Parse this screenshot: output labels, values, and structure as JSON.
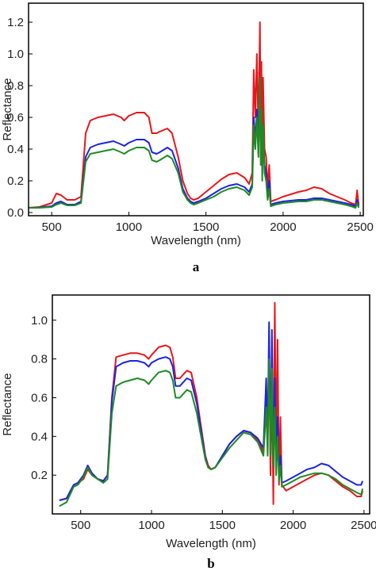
{
  "chart_data": [
    {
      "type": "line",
      "panel_label": "a",
      "xlabel": "Wavelength (nm)",
      "ylabel": "Reflectance",
      "xlim": [
        350,
        2520
      ],
      "ylim": [
        -0.02,
        1.32
      ],
      "xticks": [
        500,
        1000,
        1500,
        2000,
        2500
      ],
      "yticks": [
        0.0,
        0.2,
        0.4,
        0.6,
        0.8,
        1.0,
        1.2
      ],
      "ytick_labels": [
        "0.0",
        "0.2",
        "0.4",
        "0.6",
        "0.8",
        "1.0",
        "1.2"
      ],
      "colors": [
        "#e8171b",
        "#1c25e0",
        "#1f8a23"
      ],
      "series": [
        {
          "x": [
            350,
            420,
            500,
            530,
            560,
            600,
            650,
            690,
            720,
            750,
            800,
            850,
            900,
            950,
            970,
            1000,
            1050,
            1100,
            1130,
            1150,
            1180,
            1200,
            1250,
            1280,
            1320,
            1350,
            1380,
            1400,
            1420,
            1450,
            1500,
            1550,
            1600,
            1650,
            1700,
            1750,
            1780,
            1800,
            1810,
            1820,
            1830,
            1840,
            1850,
            1855,
            1860,
            1865,
            1870,
            1880,
            1890,
            1900,
            1910,
            1920,
            1950,
            2000,
            2100,
            2150,
            2200,
            2250,
            2300,
            2350,
            2400,
            2440,
            2470,
            2480,
            2490
          ],
          "values": [
            0.03,
            0.035,
            0.06,
            0.12,
            0.11,
            0.08,
            0.08,
            0.1,
            0.5,
            0.58,
            0.6,
            0.61,
            0.62,
            0.6,
            0.58,
            0.61,
            0.63,
            0.63,
            0.6,
            0.5,
            0.5,
            0.51,
            0.53,
            0.5,
            0.35,
            0.2,
            0.12,
            0.09,
            0.08,
            0.09,
            0.13,
            0.17,
            0.21,
            0.24,
            0.25,
            0.22,
            0.18,
            0.25,
            0.9,
            0.6,
            1.0,
            0.5,
            1.2,
            0.4,
            0.95,
            0.3,
            0.85,
            0.4,
            0.35,
            0.15,
            0.3,
            0.07,
            0.08,
            0.1,
            0.13,
            0.14,
            0.16,
            0.15,
            0.12,
            0.1,
            0.08,
            0.06,
            0.05,
            0.14,
            0.05
          ]
        },
        {
          "x": [
            350,
            420,
            500,
            530,
            560,
            600,
            650,
            690,
            720,
            750,
            800,
            850,
            900,
            950,
            970,
            1000,
            1050,
            1100,
            1130,
            1150,
            1180,
            1200,
            1250,
            1280,
            1320,
            1350,
            1380,
            1400,
            1420,
            1450,
            1500,
            1550,
            1600,
            1650,
            1700,
            1750,
            1780,
            1800,
            1810,
            1820,
            1830,
            1840,
            1850,
            1855,
            1860,
            1865,
            1870,
            1880,
            1890,
            1900,
            1910,
            1920,
            1950,
            2000,
            2100,
            2150,
            2200,
            2250,
            2300,
            2350,
            2400,
            2440,
            2470,
            2480,
            2490
          ],
          "values": [
            0.03,
            0.032,
            0.04,
            0.06,
            0.07,
            0.05,
            0.05,
            0.07,
            0.35,
            0.41,
            0.43,
            0.44,
            0.45,
            0.43,
            0.42,
            0.44,
            0.46,
            0.46,
            0.44,
            0.38,
            0.37,
            0.38,
            0.41,
            0.39,
            0.28,
            0.15,
            0.09,
            0.07,
            0.06,
            0.07,
            0.09,
            0.12,
            0.15,
            0.17,
            0.18,
            0.16,
            0.13,
            0.18,
            0.6,
            0.45,
            0.65,
            0.4,
            0.8,
            0.35,
            0.6,
            0.25,
            0.5,
            0.3,
            0.25,
            0.1,
            0.2,
            0.05,
            0.06,
            0.07,
            0.08,
            0.08,
            0.09,
            0.09,
            0.08,
            0.07,
            0.06,
            0.05,
            0.04,
            0.08,
            0.04
          ]
        },
        {
          "x": [
            350,
            420,
            500,
            530,
            560,
            600,
            650,
            690,
            720,
            750,
            800,
            850,
            900,
            950,
            970,
            1000,
            1050,
            1100,
            1130,
            1150,
            1180,
            1200,
            1250,
            1280,
            1320,
            1350,
            1380,
            1400,
            1420,
            1450,
            1500,
            1550,
            1600,
            1650,
            1700,
            1750,
            1780,
            1800,
            1810,
            1820,
            1830,
            1840,
            1850,
            1855,
            1860,
            1865,
            1870,
            1880,
            1890,
            1900,
            1910,
            1920,
            1950,
            2000,
            2100,
            2150,
            2200,
            2250,
            2300,
            2350,
            2400,
            2440,
            2470,
            2480,
            2490
          ],
          "values": [
            0.03,
            0.03,
            0.035,
            0.05,
            0.06,
            0.045,
            0.045,
            0.06,
            0.32,
            0.37,
            0.38,
            0.39,
            0.4,
            0.38,
            0.37,
            0.39,
            0.41,
            0.41,
            0.39,
            0.33,
            0.32,
            0.33,
            0.36,
            0.34,
            0.25,
            0.13,
            0.08,
            0.06,
            0.05,
            0.06,
            0.08,
            0.1,
            0.13,
            0.15,
            0.16,
            0.14,
            0.11,
            0.16,
            0.55,
            0.4,
            0.6,
            0.35,
            0.85,
            0.3,
            0.65,
            0.2,
            0.55,
            0.25,
            0.2,
            0.08,
            0.15,
            0.04,
            0.05,
            0.06,
            0.07,
            0.07,
            0.08,
            0.08,
            0.07,
            0.06,
            0.05,
            0.04,
            0.03,
            0.06,
            0.03
          ]
        }
      ]
    },
    {
      "type": "line",
      "panel_label": "b",
      "xlabel": "Wavelength (nm)",
      "ylabel": "Reflectance",
      "xlim": [
        300,
        2540
      ],
      "ylim": [
        0.0,
        1.13
      ],
      "xticks": [
        500,
        1000,
        1500,
        2000,
        2500
      ],
      "yticks": [
        0.2,
        0.4,
        0.6,
        0.8,
        1.0
      ],
      "ytick_labels": [
        "0.2",
        "0.4",
        "0.6",
        "0.8",
        "1.0"
      ],
      "colors": [
        "#e8171b",
        "#1c25e0",
        "#1f8a23"
      ],
      "series": [
        {
          "x": [
            350,
            400,
            450,
            480,
            520,
            550,
            580,
            620,
            660,
            690,
            720,
            750,
            800,
            850,
            900,
            950,
            980,
            1000,
            1050,
            1100,
            1130,
            1150,
            1170,
            1200,
            1250,
            1280,
            1320,
            1350,
            1380,
            1400,
            1420,
            1450,
            1500,
            1550,
            1600,
            1650,
            1700,
            1750,
            1790,
            1810,
            1820,
            1830,
            1840,
            1850,
            1860,
            1870,
            1880,
            1890,
            1900,
            1910,
            1920,
            1950,
            2000,
            2050,
            2100,
            2150,
            2200,
            2250,
            2300,
            2350,
            2400,
            2450,
            2480,
            2490
          ],
          "values": [
            0.07,
            0.08,
            0.15,
            0.16,
            0.18,
            0.23,
            0.2,
            0.18,
            0.17,
            0.2,
            0.6,
            0.81,
            0.82,
            0.83,
            0.83,
            0.82,
            0.8,
            0.82,
            0.86,
            0.87,
            0.86,
            0.81,
            0.7,
            0.7,
            0.74,
            0.73,
            0.6,
            0.45,
            0.3,
            0.25,
            0.23,
            0.24,
            0.3,
            0.36,
            0.4,
            0.43,
            0.42,
            0.38,
            0.32,
            0.6,
            0.4,
            0.9,
            0.2,
            0.7,
            0.05,
            1.09,
            0.3,
            0.9,
            0.15,
            0.5,
            0.15,
            0.12,
            0.14,
            0.16,
            0.18,
            0.2,
            0.21,
            0.2,
            0.17,
            0.14,
            0.12,
            0.09,
            0.09,
            0.12
          ]
        },
        {
          "x": [
            350,
            400,
            450,
            480,
            520,
            550,
            580,
            620,
            660,
            690,
            720,
            750,
            800,
            850,
            900,
            950,
            980,
            1000,
            1050,
            1100,
            1130,
            1150,
            1170,
            1200,
            1250,
            1280,
            1320,
            1350,
            1380,
            1400,
            1420,
            1450,
            1500,
            1550,
            1600,
            1650,
            1700,
            1750,
            1790,
            1810,
            1820,
            1830,
            1840,
            1850,
            1860,
            1870,
            1880,
            1890,
            1900,
            1910,
            1920,
            1950,
            2000,
            2050,
            2100,
            2150,
            2200,
            2250,
            2300,
            2350,
            2400,
            2450,
            2480,
            2490
          ],
          "values": [
            0.07,
            0.08,
            0.15,
            0.16,
            0.2,
            0.25,
            0.21,
            0.18,
            0.17,
            0.2,
            0.58,
            0.76,
            0.78,
            0.79,
            0.79,
            0.78,
            0.76,
            0.78,
            0.8,
            0.81,
            0.8,
            0.76,
            0.66,
            0.66,
            0.7,
            0.69,
            0.57,
            0.43,
            0.29,
            0.24,
            0.23,
            0.24,
            0.3,
            0.36,
            0.4,
            0.43,
            0.42,
            0.39,
            0.34,
            0.7,
            0.35,
            0.99,
            0.3,
            0.95,
            0.25,
            0.7,
            0.25,
            0.5,
            0.2,
            0.3,
            0.16,
            0.17,
            0.19,
            0.21,
            0.23,
            0.24,
            0.26,
            0.25,
            0.22,
            0.19,
            0.17,
            0.15,
            0.15,
            0.17
          ]
        },
        {
          "x": [
            350,
            400,
            450,
            480,
            520,
            550,
            580,
            620,
            660,
            690,
            720,
            750,
            800,
            850,
            900,
            950,
            980,
            1000,
            1050,
            1100,
            1130,
            1150,
            1170,
            1200,
            1250,
            1280,
            1320,
            1350,
            1380,
            1400,
            1420,
            1450,
            1500,
            1550,
            1600,
            1650,
            1700,
            1750,
            1790,
            1810,
            1820,
            1830,
            1840,
            1850,
            1860,
            1870,
            1880,
            1890,
            1900,
            1910,
            1920,
            1950,
            2000,
            2050,
            2100,
            2150,
            2200,
            2250,
            2300,
            2350,
            2400,
            2450,
            2480,
            2490
          ],
          "values": [
            0.04,
            0.06,
            0.14,
            0.15,
            0.19,
            0.24,
            0.2,
            0.18,
            0.16,
            0.18,
            0.52,
            0.66,
            0.68,
            0.69,
            0.7,
            0.69,
            0.67,
            0.69,
            0.73,
            0.74,
            0.73,
            0.69,
            0.6,
            0.6,
            0.64,
            0.63,
            0.52,
            0.4,
            0.28,
            0.24,
            0.23,
            0.24,
            0.29,
            0.34,
            0.38,
            0.42,
            0.41,
            0.37,
            0.3,
            0.55,
            0.3,
            0.8,
            0.3,
            0.75,
            0.25,
            0.55,
            0.2,
            0.4,
            0.17,
            0.25,
            0.14,
            0.15,
            0.17,
            0.19,
            0.2,
            0.21,
            0.21,
            0.2,
            0.18,
            0.15,
            0.13,
            0.11,
            0.1,
            0.13
          ]
        }
      ]
    }
  ]
}
